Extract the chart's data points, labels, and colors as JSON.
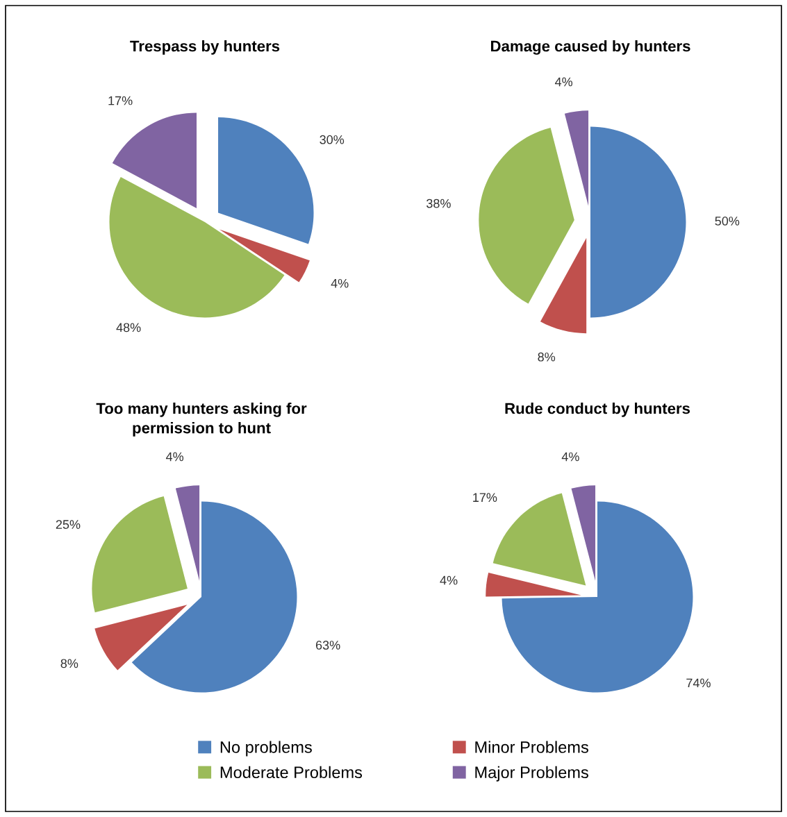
{
  "chart_data": [
    {
      "type": "pie",
      "title": "Trespass by hunters",
      "categories": [
        "No problems",
        "Minor Problems",
        "Moderate Problems",
        "Major Problems"
      ],
      "values": [
        30,
        4,
        48,
        17
      ],
      "colors": [
        "#4f81bd",
        "#c0504d",
        "#9bbb59",
        "#8064a2"
      ],
      "value_labels": [
        "30%",
        "4%",
        "48%",
        "17%"
      ],
      "legend": "bottom"
    },
    {
      "type": "pie",
      "title": "Damage caused by hunters",
      "categories": [
        null,
        null,
        null,
        null
      ],
      "values": [
        50,
        8,
        38,
        4
      ],
      "colors": [
        "#4f81bd",
        "#c0504d",
        "#9bbb59",
        "#8064a2"
      ],
      "value_labels": [
        "50%",
        "8%",
        "38%",
        "4%"
      ]
    },
    {
      "type": "pie",
      "title": "Too many hunters asking for\npermission to hunt",
      "categories": [
        null,
        null,
        null,
        null
      ],
      "values": [
        63,
        8,
        25,
        4
      ],
      "colors": [
        "#4f81bd",
        "#c0504d",
        "#9bbb59",
        "#8064a2"
      ],
      "value_labels": [
        "63%",
        "8%",
        "25%",
        "4%"
      ]
    },
    {
      "type": "pie",
      "title": "Rude conduct by hunters",
      "categories": [
        null,
        null,
        null,
        null
      ],
      "values": [
        74,
        4,
        17,
        4
      ],
      "colors": [
        "#4f81bd",
        "#c0504d",
        "#9bbb59",
        "#8064a2"
      ],
      "value_labels": [
        "74%",
        "4%",
        "17%",
        "4%"
      ]
    }
  ]
}
